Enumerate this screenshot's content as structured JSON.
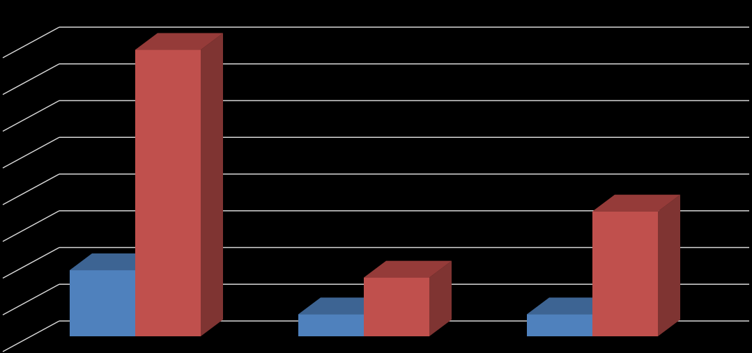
{
  "chart_data": {
    "type": "bar",
    "style": "3d-clustered-column",
    "categories": [
      "",
      "",
      ""
    ],
    "series": [
      {
        "values": [
          1.8,
          0.6,
          0.6
        ],
        "color": "#4F81BD",
        "top_color": "#3D6493",
        "side_color": "#385D8A"
      },
      {
        "values": [
          7.8,
          1.6,
          3.4
        ],
        "color": "#C0504D",
        "top_color": "#953B39",
        "side_color": "#7F3432"
      }
    ],
    "ylim": [
      0,
      8
    ],
    "ytick_step": 1,
    "grid": true,
    "grid_color": "#D9D9D9",
    "background": "#000000",
    "legend": "none",
    "title": "",
    "xlabel": "",
    "ylabel": ""
  }
}
